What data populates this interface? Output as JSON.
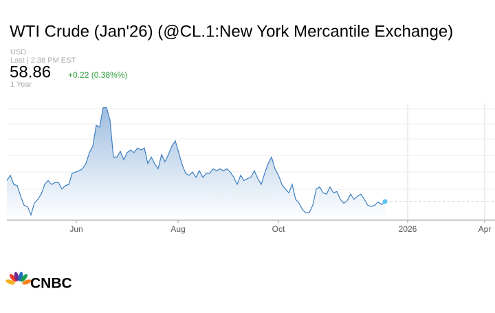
{
  "header": {
    "title": "WTI Crude (Jan'26) (@CL.1:New York Mercantile Exchange)",
    "currency": "USD",
    "last": "Last | 2:38 PM EST",
    "price": "58.86",
    "change": "+0.22 (0.38%%)",
    "range": "1 Year"
  },
  "chart_data": {
    "type": "area",
    "color": "#3d7ebf",
    "values": [
      62.1,
      62.9,
      61.5,
      61.3,
      59.7,
      58.3,
      58.1,
      56.8,
      58.6,
      59.2,
      60.0,
      61.5,
      62.1,
      61.5,
      61.8,
      61.8,
      60.8,
      61.3,
      61.5,
      63.2,
      63.4,
      63.6,
      63.9,
      64.7,
      66.4,
      67.4,
      70.6,
      70.3,
      73.3,
      73.3,
      71.4,
      65.7,
      65.7,
      66.6,
      65.3,
      66.4,
      66.8,
      66.4,
      67.1,
      66.8,
      67.1,
      64.7,
      65.7,
      64.7,
      63.9,
      66.1,
      65.0,
      66.1,
      67.4,
      68.2,
      66.4,
      64.5,
      63.2,
      62.9,
      63.4,
      62.6,
      63.6,
      62.6,
      63.2,
      63.2,
      63.9,
      63.6,
      63.9,
      63.6,
      63.9,
      63.4,
      62.6,
      61.5,
      62.9,
      62.1,
      62.4,
      62.6,
      63.6,
      62.4,
      61.5,
      63.2,
      64.7,
      65.7,
      63.9,
      62.9,
      61.5,
      60.8,
      60.2,
      61.5,
      59.2,
      58.6,
      57.6,
      57.1,
      57.2,
      58.3,
      60.8,
      61.1,
      60.2,
      60.0,
      61.1,
      60.2,
      60.4,
      59.2,
      58.6,
      59.0,
      60.0,
      59.2,
      59.7,
      60.0,
      59.2,
      58.3,
      58.1,
      58.3,
      58.8,
      58.4,
      58.86
    ],
    "xlim": [
      0,
      142
    ],
    "xticks": [
      {
        "value": 20.2,
        "label": "Jun"
      },
      {
        "value": 49.8,
        "label": "Aug"
      },
      {
        "value": 79,
        "label": "Oct"
      },
      {
        "value": 116.6,
        "label": "2026"
      },
      {
        "value": 139,
        "label": "Apr"
      }
    ],
    "ylim": [
      56,
      74
    ]
  },
  "logo": "CNBC"
}
